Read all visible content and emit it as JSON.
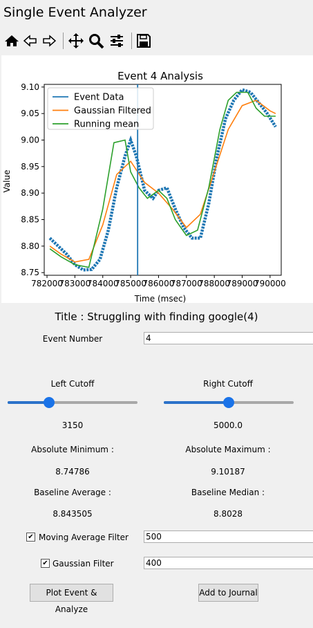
{
  "window": {
    "title": "Single Event Analyzer"
  },
  "toolbar": {
    "buttons": [
      {
        "name": "home-icon"
      },
      {
        "name": "back-icon"
      },
      {
        "name": "forward-icon"
      },
      {
        "name": "pan-icon"
      },
      {
        "name": "zoom-icon"
      },
      {
        "name": "configure-subplots-icon"
      },
      {
        "name": "save-icon"
      }
    ]
  },
  "chart_data": {
    "type": "line",
    "title": "Event 4 Analysis",
    "xlabel": "Time (msec)",
    "ylabel": "Value",
    "xlim": [
      781900,
      790400
    ],
    "ylim": [
      8.745,
      9.105
    ],
    "x_ticks": [
      782000,
      783000,
      784000,
      785000,
      786000,
      787000,
      788000,
      789000,
      790000
    ],
    "x_tick_labels": [
      "782000",
      "783000",
      "784000",
      "785000",
      "786000",
      "787000",
      "788000",
      "789000",
      "790000"
    ],
    "y_ticks": [
      8.75,
      8.8,
      8.85,
      8.9,
      8.95,
      9.0,
      9.05,
      9.1
    ],
    "y_tick_labels": [
      "8.75",
      "8.80",
      "8.85",
      "8.90",
      "8.95",
      "9.00",
      "9.05",
      "9.10"
    ],
    "legend_position": "top-left",
    "vline_x": 785250,
    "series": [
      {
        "name": "Event Data",
        "color": "#1f77b4",
        "style": "thick-dashed",
        "x": [
          782100,
          782400,
          782700,
          783000,
          783300,
          783600,
          783900,
          784200,
          784500,
          784800,
          785000,
          785200,
          785500,
          785800,
          786000,
          786300,
          786600,
          786900,
          787200,
          787500,
          787800,
          788100,
          788400,
          788700,
          789000,
          789300,
          789600,
          789900,
          790200
        ],
        "y": [
          8.815,
          8.8,
          8.785,
          8.765,
          8.755,
          8.756,
          8.775,
          8.83,
          8.91,
          8.97,
          9.0,
          8.97,
          8.905,
          8.89,
          8.905,
          8.91,
          8.87,
          8.835,
          8.815,
          8.815,
          8.88,
          8.97,
          9.04,
          9.075,
          9.095,
          9.09,
          9.07,
          9.05,
          9.025
        ]
      },
      {
        "name": "Gaussian Filtered",
        "color": "#ff7f0e",
        "style": "solid",
        "x": [
          782100,
          782500,
          783000,
          783500,
          784000,
          784500,
          785000,
          785500,
          786000,
          786500,
          787000,
          787500,
          788000,
          788500,
          789000,
          789500,
          790000,
          790200
        ],
        "y": [
          8.8,
          8.785,
          8.77,
          8.775,
          8.84,
          8.935,
          8.96,
          8.92,
          8.9,
          8.87,
          8.835,
          8.86,
          8.94,
          9.02,
          9.065,
          9.075,
          9.055,
          9.05
        ]
      },
      {
        "name": "Running mean",
        "color": "#2ca02c",
        "style": "solid",
        "x": [
          782100,
          782500,
          783000,
          783500,
          784000,
          784400,
          784800,
          785000,
          785300,
          785600,
          786000,
          786300,
          786600,
          787000,
          787400,
          787800,
          788200,
          788500,
          788800,
          789200,
          789500,
          789800,
          790200
        ],
        "y": [
          8.795,
          8.78,
          8.765,
          8.76,
          8.87,
          8.995,
          9.0,
          8.94,
          8.91,
          8.89,
          8.905,
          8.89,
          8.85,
          8.82,
          8.83,
          8.91,
          9.02,
          9.075,
          9.09,
          9.09,
          9.06,
          9.045,
          9.045
        ]
      }
    ]
  },
  "form": {
    "title_line": "Title : Struggling with finding google(4)",
    "event_number_label": "Event Number",
    "event_number_value": "4",
    "left_cutoff_label": "Left Cutoff",
    "left_cutoff_value": "3150",
    "left_cutoff_fraction": 0.32,
    "right_cutoff_label": "Right Cutoff",
    "right_cutoff_value": "5000.0",
    "right_cutoff_fraction": 0.5,
    "abs_min_label": "Absolute Minimum :",
    "abs_min_value": "8.74786",
    "abs_max_label": "Absolute Maximum :",
    "abs_max_value": "9.10187",
    "baseline_avg_label": "Baseline Average :",
    "baseline_avg_value": "8.843505",
    "baseline_median_label": "Baseline Median :",
    "baseline_median_value": "8.8028",
    "moving_avg_label": "Moving Average Filter",
    "moving_avg_checked": true,
    "moving_avg_value": "500",
    "gaussian_label": "Gaussian Filter",
    "gaussian_checked": true,
    "gaussian_value": "400",
    "plot_button": "Plot Event & Analyze",
    "journal_button": "Add to Journal"
  }
}
